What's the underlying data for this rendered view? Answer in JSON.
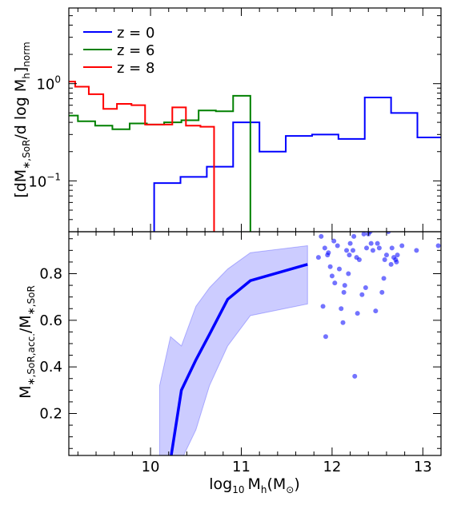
{
  "chart_data": [
    {
      "type": "line",
      "drawstyle": "steps",
      "ylabel_parts": {
        "open": "[dM",
        "sub1": "∗,SoR",
        "mid": "/d log M",
        "sub2": "h",
        "close": "]",
        "sub3": "norm"
      },
      "yscale": "log",
      "xlim": [
        9.1,
        13.2
      ],
      "ylim": [
        0.03,
        6.0
      ],
      "yticks": [
        {
          "value": 1.0,
          "base": "10",
          "exp": "0"
        },
        {
          "value": 0.1,
          "base": "10",
          "exp": "−1"
        }
      ],
      "legend": {
        "placement": "top-left"
      },
      "colors": {
        "blue": "#0000ff",
        "green": "#008000",
        "red": "#ff0000"
      },
      "series": [
        {
          "name": "z = 0",
          "color": "#0000ff",
          "edges": [
            10.04,
            10.33,
            10.62,
            10.91,
            11.2,
            11.49,
            11.78,
            12.07,
            12.36,
            12.65,
            12.94,
            13.2
          ],
          "values": [
            0.095,
            0.11,
            0.14,
            0.4,
            0.2,
            0.29,
            0.3,
            0.27,
            0.72,
            0.5,
            0.28
          ]
        },
        {
          "name": "z = 6",
          "color": "#008000",
          "edges": [
            9.1,
            9.2,
            9.39,
            9.58,
            9.77,
            9.96,
            10.15,
            10.34,
            10.53,
            10.72,
            10.91,
            11.1
          ],
          "values": [
            0.47,
            0.41,
            0.37,
            0.34,
            0.39,
            0.38,
            0.4,
            0.42,
            0.53,
            0.52,
            0.75
          ]
        },
        {
          "name": "z = 8",
          "color": "#ff0000",
          "edges": [
            9.1,
            9.17,
            9.32,
            9.48,
            9.63,
            9.79,
            9.94,
            10.09,
            10.24,
            10.39,
            10.55,
            10.7
          ],
          "values": [
            1.05,
            0.93,
            0.78,
            0.55,
            0.62,
            0.6,
            0.38,
            0.38,
            0.57,
            0.37,
            0.36
          ]
        }
      ]
    },
    {
      "type": "line",
      "ylabel_parts": {
        "m1": "M",
        "sub1": "∗,SoR,acc.",
        "slash": "/M",
        "sub2": "∗,SoR"
      },
      "xlabel_parts": {
        "log": "log",
        "logsub": "10",
        "m": "M",
        "msub": "h",
        "unit": "(M",
        "sun": "⊙",
        "close": ")"
      },
      "xlim": [
        9.1,
        13.2
      ],
      "ylim": [
        0.02,
        0.98
      ],
      "xticks": [
        "10",
        "11",
        "12",
        "13"
      ],
      "yticks": [
        "0.2",
        "0.4",
        "0.6",
        "0.8"
      ],
      "colors": {
        "line": "#0000ff",
        "band": "#0000ff",
        "points": "#0000ff"
      },
      "median": {
        "x": [
          10.22,
          10.34,
          10.5,
          10.65,
          10.85,
          11.1,
          11.73
        ],
        "y": [
          0.0,
          0.3,
          0.43,
          0.54,
          0.69,
          0.77,
          0.84
        ]
      },
      "band": {
        "x": [
          10.1,
          10.22,
          10.34,
          10.5,
          10.65,
          10.85,
          11.1,
          11.73
        ],
        "upper": [
          0.32,
          0.53,
          0.49,
          0.66,
          0.74,
          0.82,
          0.89,
          0.92
        ],
        "lower": [
          0.0,
          0.0,
          0.0,
          0.13,
          0.32,
          0.49,
          0.62,
          0.67
        ]
      },
      "scatter": {
        "x": [
          11.88,
          11.92,
          11.95,
          11.98,
          12.0,
          12.03,
          11.85,
          11.9,
          11.93,
          12.06,
          12.08,
          12.1,
          12.12,
          12.14,
          12.16,
          12.18,
          12.2,
          12.23,
          12.25,
          12.28,
          12.3,
          12.33,
          12.35,
          12.38,
          12.4,
          12.42,
          12.45,
          12.48,
          12.5,
          12.52,
          12.55,
          12.58,
          12.6,
          12.62,
          12.65,
          12.68,
          12.7,
          12.72,
          12.77,
          12.93,
          13.17,
          11.96,
          12.02,
          12.13,
          12.19,
          12.24,
          12.27,
          12.37,
          12.43,
          12.57,
          12.66,
          12.71
        ],
        "y": [
          0.96,
          0.91,
          0.88,
          0.83,
          0.79,
          0.76,
          0.87,
          0.66,
          0.53,
          0.92,
          0.82,
          0.65,
          0.59,
          0.75,
          0.9,
          0.8,
          0.93,
          0.9,
          0.36,
          0.63,
          0.86,
          0.71,
          0.97,
          0.91,
          0.97,
          0.98,
          0.9,
          0.64,
          0.93,
          0.91,
          0.72,
          0.86,
          0.88,
          0.98,
          0.84,
          0.87,
          0.86,
          0.88,
          0.92,
          0.9,
          0.92,
          0.89,
          0.94,
          0.72,
          0.88,
          0.96,
          0.87,
          0.74,
          0.93,
          0.78,
          0.91,
          0.85
        ]
      }
    }
  ]
}
